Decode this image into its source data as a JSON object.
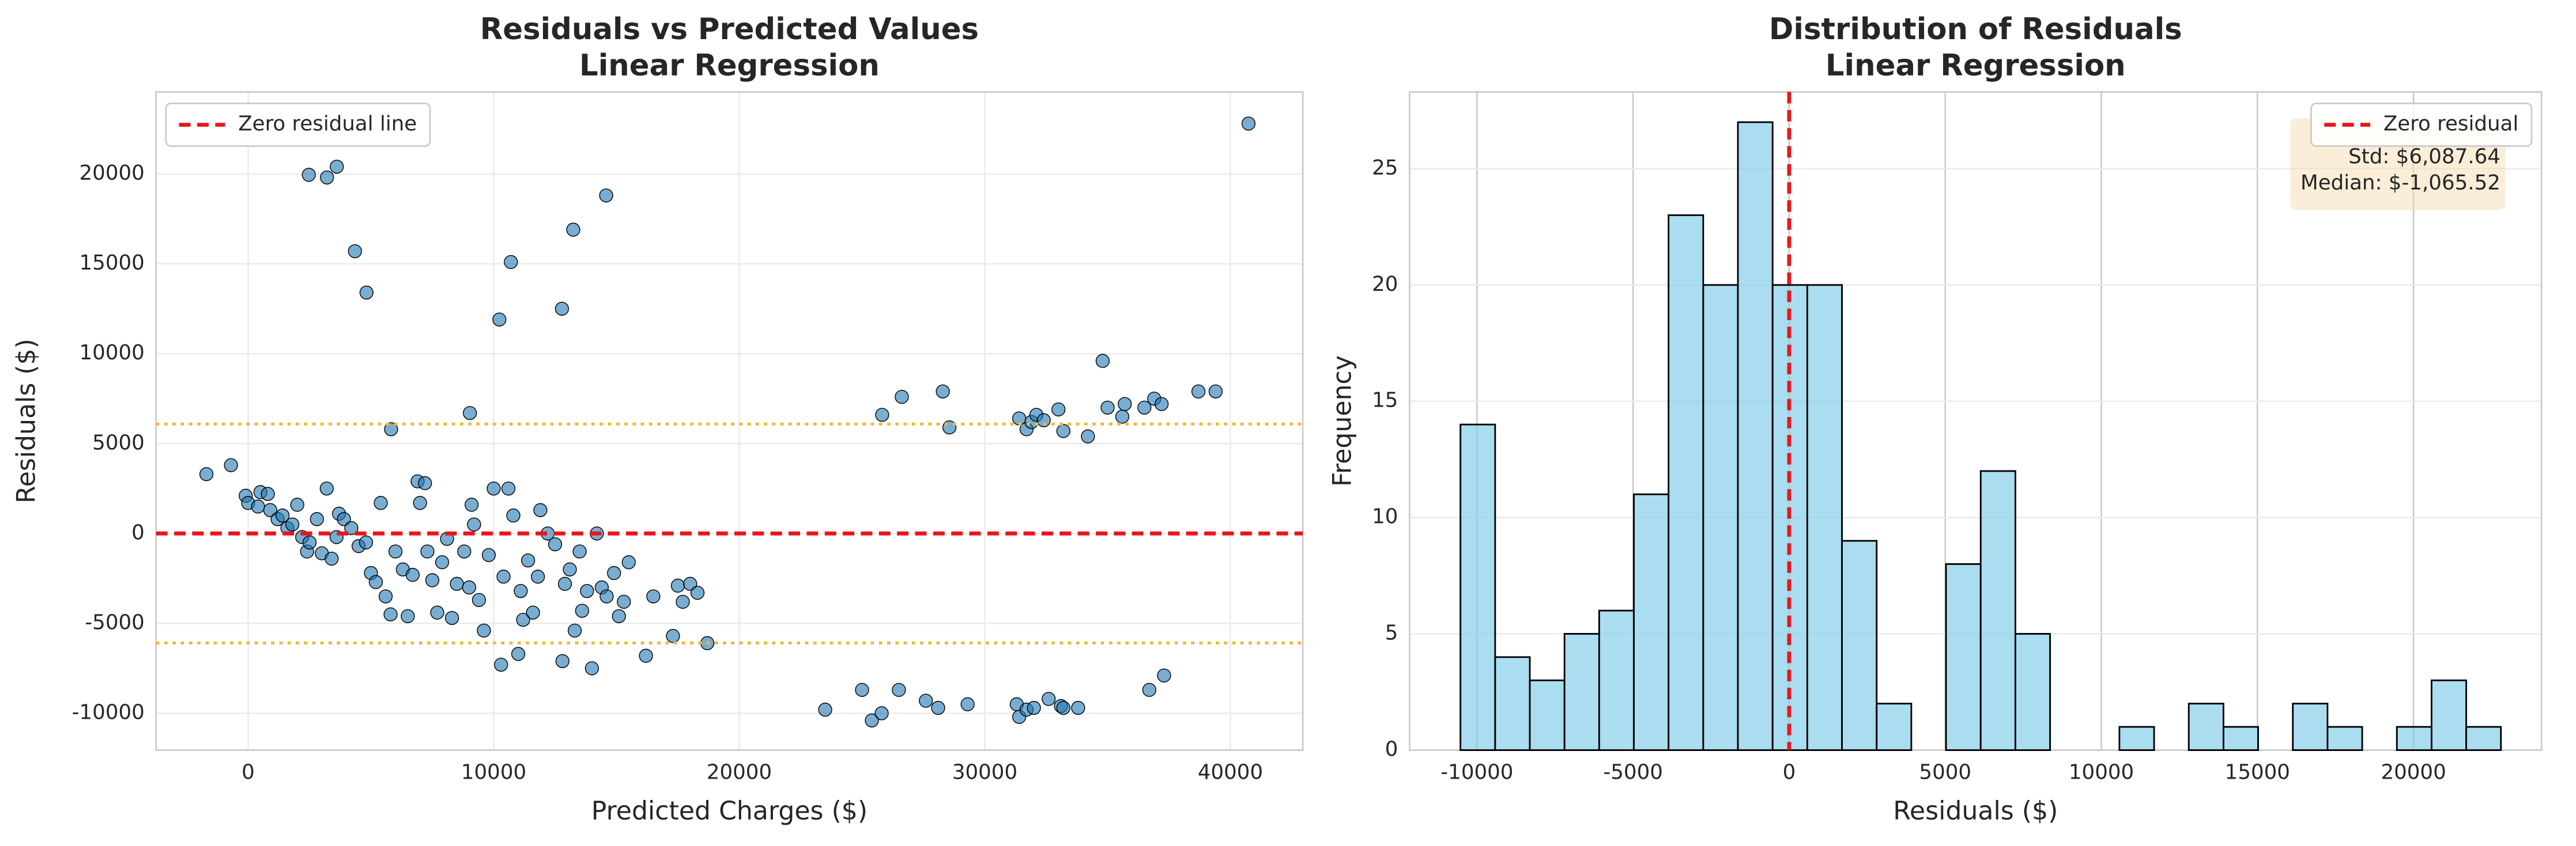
{
  "chart_data": [
    {
      "type": "scatter",
      "title": "Residuals vs Predicted Values",
      "subtitle": "Linear Regression",
      "x_label": "Predicted Charges ($)",
      "y_label": "Residuals ($)",
      "color": "#1f77b4",
      "grid": true,
      "legend": "upper left",
      "xlim": [
        -3750,
        42950
      ],
      "ylim": [
        -12050,
        24560
      ],
      "xticks": [
        0,
        10000,
        20000,
        30000,
        40000
      ],
      "yticks": [
        -10000,
        -5000,
        0,
        5000,
        10000,
        15000,
        20000
      ],
      "reference_lines": [
        {
          "value": 0,
          "label": "Zero residual line",
          "color": "#e8161b",
          "style": "dashed"
        },
        {
          "value": 6087.64,
          "color": "#f5b731",
          "style": "dotted"
        },
        {
          "value": -6087.64,
          "color": "#f5b731",
          "style": "dotted"
        }
      ],
      "x": [
        2470,
        3210,
        3610,
        4350,
        4820,
        5820,
        9030,
        10230,
        10700,
        12780,
        13240,
        14580,
        40740,
        25820,
        26620,
        28290,
        28560,
        31400,
        31700,
        31900,
        32100,
        32400,
        33000,
        33200,
        34200,
        34800,
        35000,
        35600,
        35700,
        36500,
        36900,
        37200,
        38700,
        39400,
        23500,
        25000,
        25400,
        25800,
        26500,
        27600,
        28100,
        29300,
        31300,
        31400,
        31700,
        32000,
        32600,
        33100,
        33200,
        33800,
        36700,
        37300,
        -1700,
        -700,
        -100,
        0,
        400,
        500,
        800,
        900,
        1200,
        1400,
        1600,
        1800,
        2000,
        2200,
        2400,
        2500,
        2800,
        3000,
        3200,
        3400,
        3600,
        3700,
        3900,
        4200,
        4500,
        4800,
        5000,
        5200,
        5400,
        5600,
        5800,
        6000,
        6300,
        6500,
        6700,
        6900,
        7000,
        7200,
        7300,
        7500,
        7700,
        7900,
        8100,
        8300,
        8500,
        8800,
        9000,
        9100,
        9200,
        9400,
        9600,
        9800,
        10000,
        10300,
        10400,
        10600,
        10800,
        11000,
        11100,
        11200,
        11400,
        11600,
        11800,
        11900,
        12200,
        12500,
        12800,
        12900,
        13100,
        13300,
        13500,
        13600,
        13800,
        14000,
        14200,
        14400,
        14600,
        14900,
        15100,
        15300,
        15500,
        16200,
        16500,
        17300,
        17500,
        17700,
        18000,
        18300,
        18700
      ],
      "values": [
        19950,
        19800,
        20400,
        15700,
        13400,
        5800,
        6700,
        11900,
        15100,
        12500,
        16900,
        18800,
        22800,
        6600,
        7600,
        7900,
        5900,
        6400,
        5800,
        6200,
        6600,
        6300,
        6900,
        5700,
        5400,
        9600,
        7000,
        6500,
        7200,
        7000,
        7500,
        7200,
        7900,
        7900,
        -9800,
        -8700,
        -10400,
        -10000,
        -8700,
        -9300,
        -9700,
        -9500,
        -9500,
        -10200,
        -9800,
        -9700,
        -9200,
        -9600,
        -9700,
        -9700,
        -8700,
        -7900,
        3300,
        3800,
        2100,
        1700,
        1500,
        2300,
        2200,
        1300,
        800,
        1000,
        300,
        500,
        1600,
        -200,
        -1000,
        -500,
        800,
        -1100,
        2500,
        -1400,
        -200,
        1100,
        800,
        300,
        -700,
        -500,
        -2200,
        -2700,
        1700,
        -3500,
        -4500,
        -1000,
        -2000,
        -4600,
        -2300,
        2900,
        1700,
        2800,
        -1000,
        -2600,
        -4400,
        -1600,
        -300,
        -4700,
        -2800,
        -1000,
        -3000,
        1600,
        500,
        -3700,
        -5400,
        -1200,
        2500,
        -7300,
        -2400,
        2500,
        1000,
        -6700,
        -3200,
        -4800,
        -1500,
        -4400,
        -2400,
        1300,
        0,
        -600,
        -7100,
        -2800,
        -2000,
        -5400,
        -1000,
        -4300,
        -3200,
        -7500,
        0,
        -3000,
        -3500,
        -2200,
        -4600,
        -3800,
        -1600,
        -6800,
        -3500,
        -5700,
        -2900,
        -3800,
        -2800,
        -3300,
        -6100
      ]
    },
    {
      "type": "histogram",
      "title": "Distribution of Residuals",
      "subtitle": "Linear Regression",
      "x_label": "Residuals ($)",
      "y_label": "Frequency",
      "color": "#87ceeb",
      "grid": true,
      "legend": "upper right",
      "xlim": [
        -12160,
        24100
      ],
      "ylim": [
        0,
        28.3
      ],
      "xticks": [
        -10000,
        -5000,
        0,
        5000,
        10000,
        15000,
        20000
      ],
      "yticks": [
        0,
        5,
        10,
        15,
        20,
        25
      ],
      "reference_lines": [
        {
          "value": 0,
          "label": "Zero residual",
          "color": "#e8161b",
          "style": "dashed"
        }
      ],
      "annotation": [
        "Std: $6,087.64",
        "Median: $-1,065.52"
      ],
      "bins": [
        -10530,
        -9419,
        -8308,
        -7197,
        -6086,
        -4975,
        -3864,
        -2753,
        -1642,
        -531,
        580,
        1691,
        2802,
        3913,
        5024,
        6135,
        7246,
        8357,
        9468,
        10579,
        11690,
        12801,
        13912,
        15023,
        16134,
        17245,
        18356,
        19467,
        20578,
        21689,
        22800
      ],
      "values": [
        14,
        4,
        3,
        5,
        6,
        11,
        23,
        20,
        27,
        20,
        20,
        9,
        2,
        0,
        8,
        12,
        5,
        0,
        0,
        1,
        0,
        2,
        1,
        0,
        2,
        1,
        0,
        1,
        3,
        1
      ]
    }
  ]
}
